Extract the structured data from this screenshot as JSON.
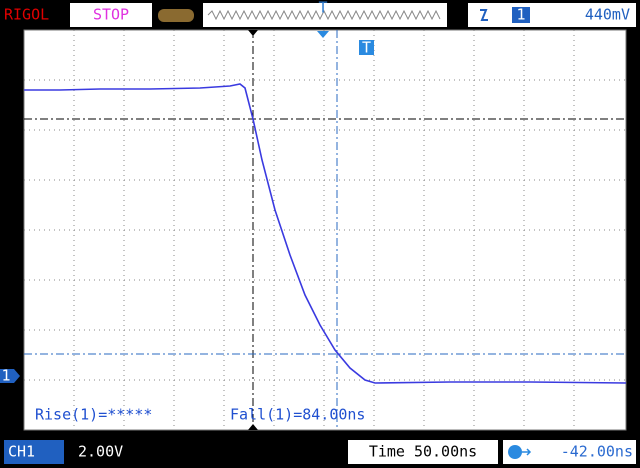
{
  "top_bar": {
    "brand": "RIGOL",
    "status": "STOP",
    "trigger_source": "1",
    "trigger_level": "440mV"
  },
  "markers": {
    "trigger_position": "T",
    "trigger_marker": "T",
    "channel": "1"
  },
  "measurements": {
    "rise": "Rise(1)=*****",
    "fall": "Fall(1)=84.00ns"
  },
  "bottom_bar": {
    "channel": "CH1",
    "scale": "2.00V",
    "timebase": "Time 50.00ns",
    "offset": "-42.00ns"
  }
}
